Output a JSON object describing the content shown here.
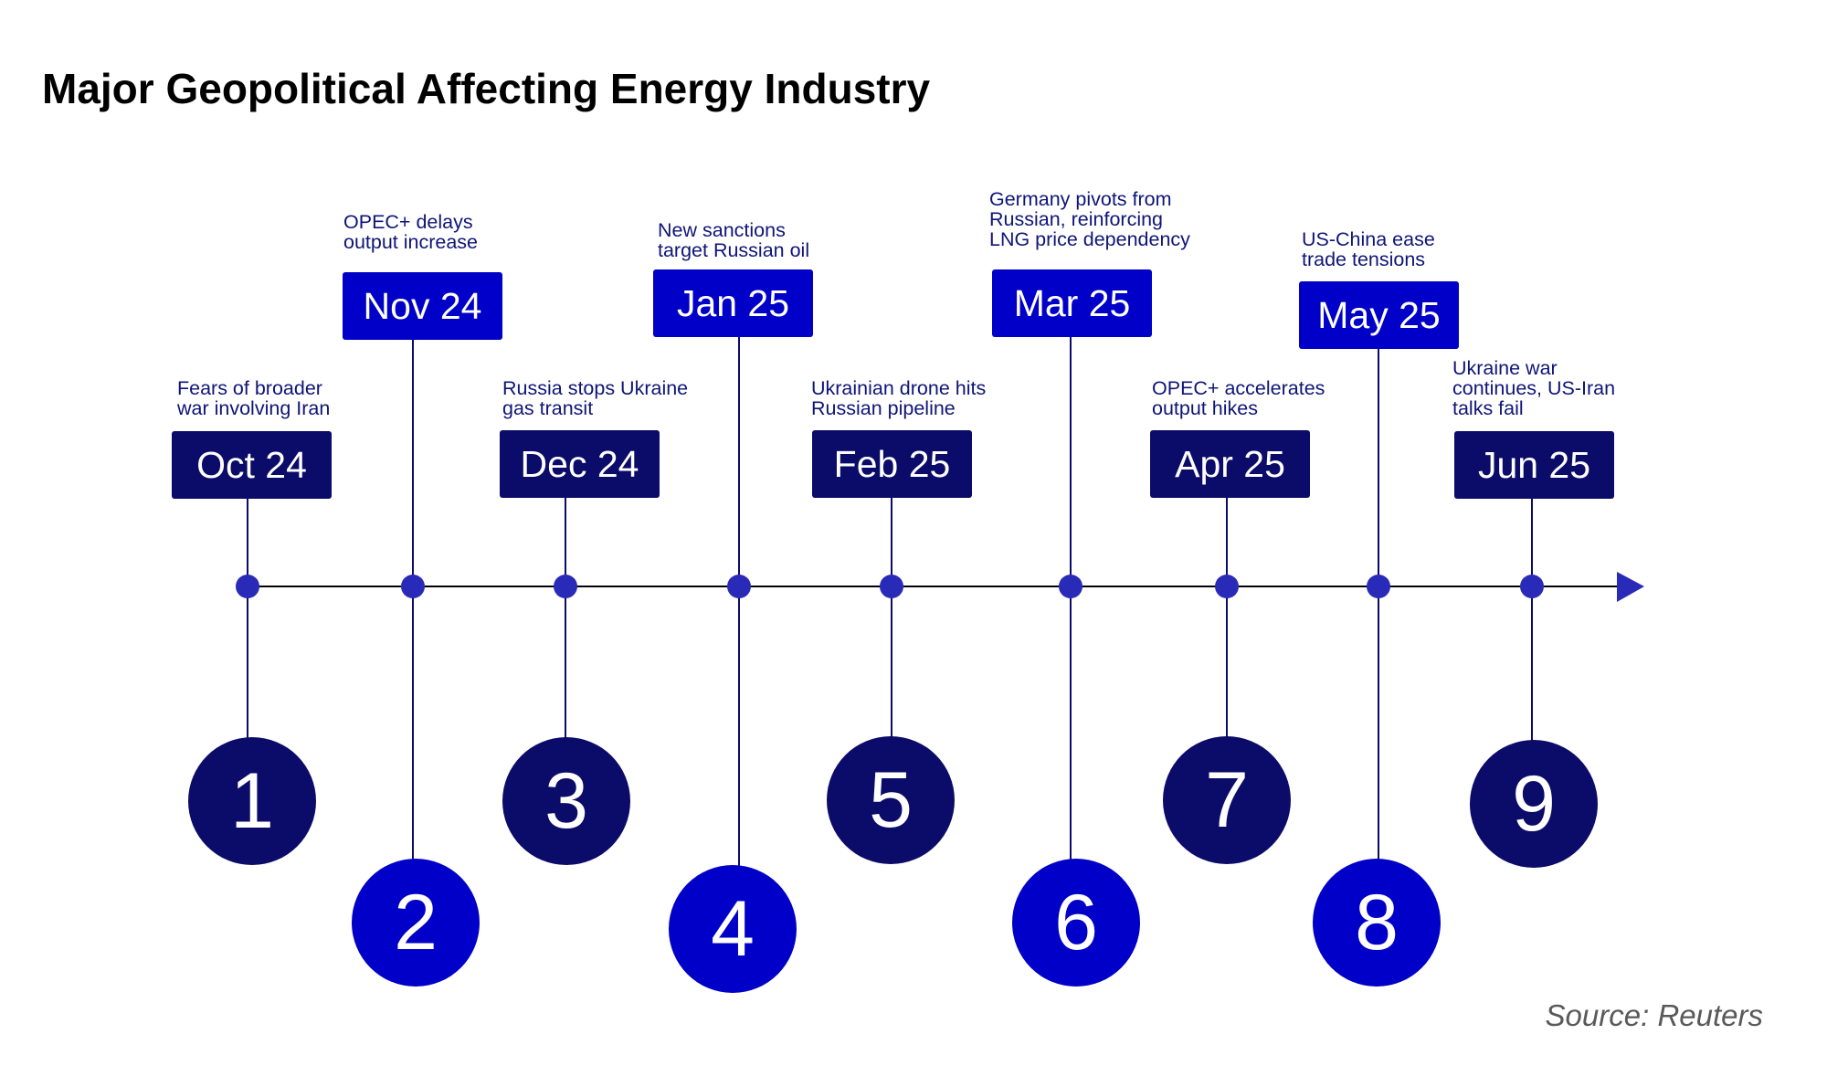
{
  "title": "Major Geopolitical Affecting Energy Industry",
  "source": "Source: Reuters",
  "colors": {
    "dark_navy": "#0b0b69",
    "bright_blue": "#0000c8",
    "axis_dot": "#2a2ab8",
    "text_navy": "#0f1577"
  },
  "events": [
    {
      "number": "1",
      "date": "Oct 24",
      "text": "Fears of broader\nwar involving Iran"
    },
    {
      "number": "2",
      "date": "Nov 24",
      "text": "OPEC+ delays\noutput increase"
    },
    {
      "number": "3",
      "date": "Dec 24",
      "text": "Russia stops Ukraine\ngas transit"
    },
    {
      "number": "4",
      "date": "Jan 25",
      "text": "New sanctions\ntarget Russian oil"
    },
    {
      "number": "5",
      "date": "Feb 25",
      "text": "Ukrainian drone hits\nRussian pipeline"
    },
    {
      "number": "6",
      "date": "Mar 25",
      "text": "Germany pivots from\nRussian, reinforcing\nLNG price dependency"
    },
    {
      "number": "7",
      "date": "Apr 25",
      "text": "OPEC+ accelerates\noutput hikes"
    },
    {
      "number": "8",
      "date": "May 25",
      "text": "US-China ease\ntrade tensions"
    },
    {
      "number": "9",
      "date": "Jun 25",
      "text": "Ukraine war\ncontinues, US-Iran\ntalks fail"
    }
  ]
}
